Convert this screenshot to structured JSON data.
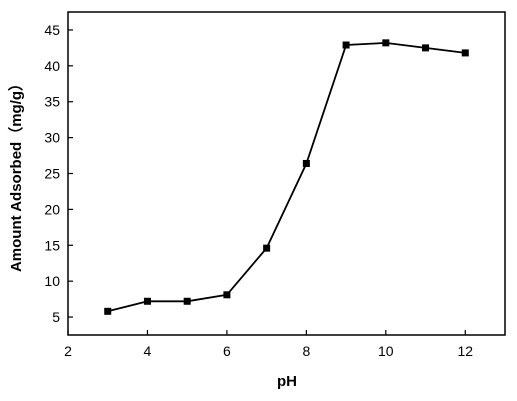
{
  "chart_data": {
    "type": "line",
    "title": "",
    "xlabel": "pH",
    "ylabel": "Amount Adsorbed（mg/g）",
    "xlim": [
      2,
      13
    ],
    "ylim": [
      2.5,
      47.5
    ],
    "xticks": [
      2,
      4,
      6,
      8,
      10,
      12
    ],
    "yticks": [
      5,
      10,
      15,
      20,
      25,
      30,
      35,
      40,
      45
    ],
    "grid": false,
    "legend": "none",
    "series": [
      {
        "x": [
          3,
          4,
          5,
          6,
          7,
          8,
          9,
          10,
          11,
          12
        ],
        "y": [
          5.8,
          7.2,
          7.2,
          8.1,
          14.6,
          26.4,
          42.9,
          43.2,
          42.5,
          41.8
        ],
        "color": "#000000",
        "marker": "square"
      }
    ]
  }
}
